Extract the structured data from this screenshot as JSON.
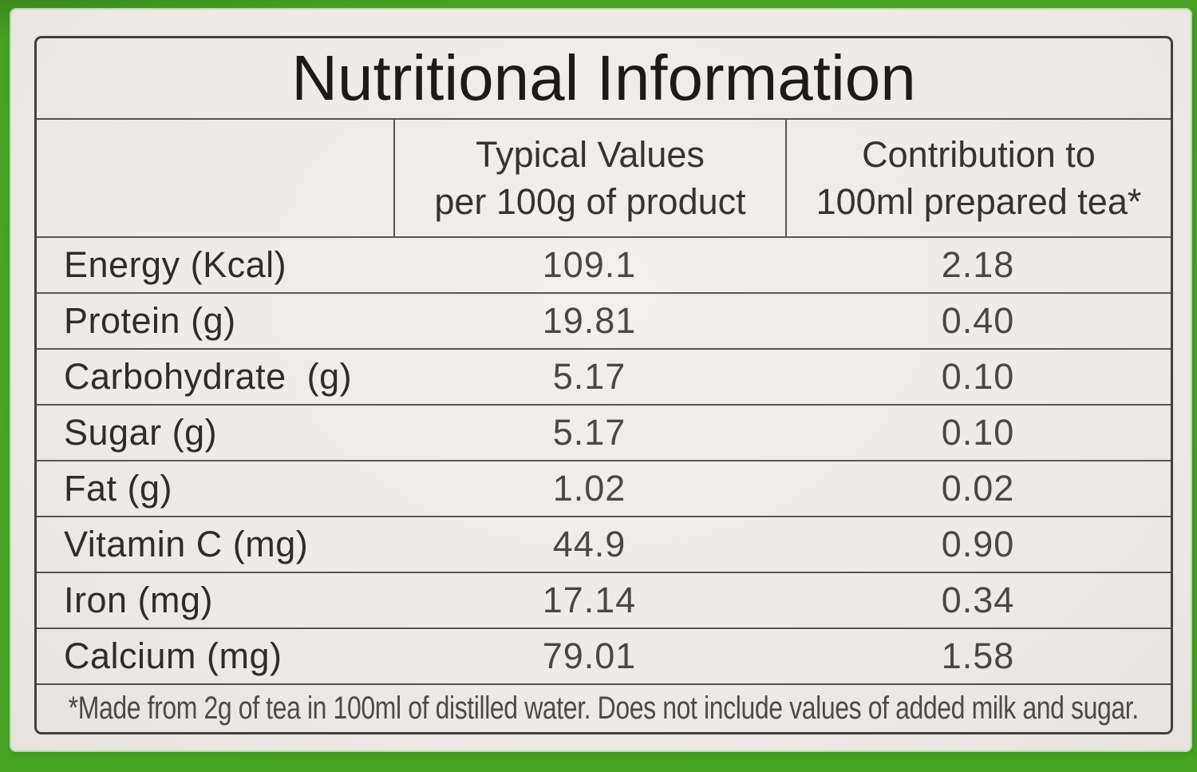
{
  "label": {
    "title": "Nutritional Information",
    "header": {
      "typical_values_line1": "Typical Values",
      "typical_values_line2": "per 100g of product",
      "contribution_line1": "Contribution to",
      "contribution_line2": "100ml prepared tea*"
    },
    "rows": [
      {
        "label": "Energy (Kcal)",
        "per_100g": "109.1",
        "per_100ml": "2.18"
      },
      {
        "label": "Protein (g)",
        "per_100g": "19.81",
        "per_100ml": "0.40"
      },
      {
        "label": "Carbohydrate  (g)",
        "per_100g": "5.17",
        "per_100ml": "0.10"
      },
      {
        "label": "Sugar (g)",
        "per_100g": "5.17",
        "per_100ml": "0.10"
      },
      {
        "label": "Fat (g)",
        "per_100g": "1.02",
        "per_100ml": "0.02"
      },
      {
        "label": "Vitamin C (mg)",
        "per_100g": "44.9",
        "per_100ml": "0.90"
      },
      {
        "label": "Iron (mg)",
        "per_100g": "17.14",
        "per_100ml": "0.34"
      },
      {
        "label": "Calcium (mg)",
        "per_100g": "79.01",
        "per_100ml": "1.58"
      }
    ],
    "footnote": "*Made from 2g of tea in 100ml of distilled water. Does not include values of added milk and sugar."
  },
  "colors": {
    "package_green": "#4ba327",
    "card_background": "#f0ede8",
    "table_border": "#443f38",
    "grid_line": "#57524a",
    "text": "#2e2b28"
  }
}
